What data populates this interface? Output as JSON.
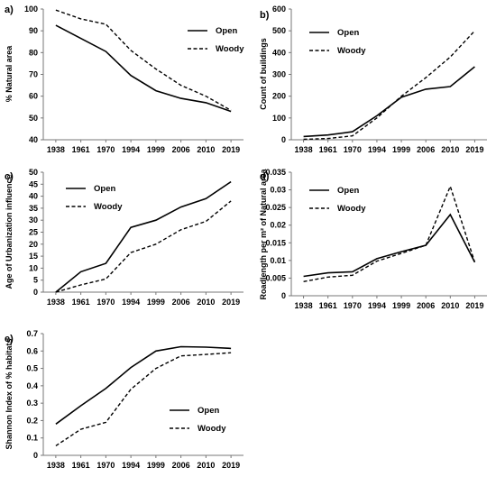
{
  "chart_data": [
    {
      "type": "line",
      "panel_label": "a)",
      "x": [
        "1938",
        "1961",
        "1970",
        "1994",
        "1999",
        "2006",
        "2010",
        "2019"
      ],
      "ylabel": "% Natural area",
      "ylim": [
        40,
        100
      ],
      "yticks": [
        "40",
        "50",
        "60",
        "70",
        "80",
        "90",
        "100"
      ],
      "legend_position": "top-right",
      "series": [
        {
          "name": "Open",
          "style": "solid",
          "values": [
            92.5,
            86.5,
            80.5,
            69.5,
            62.5,
            59,
            57,
            53
          ]
        },
        {
          "name": "Woody",
          "style": "dashed",
          "values": [
            99.5,
            95.5,
            93,
            81,
            72.5,
            65,
            60,
            53.5
          ]
        }
      ]
    },
    {
      "type": "line",
      "panel_label": "b)",
      "x": [
        "1938",
        "1961",
        "1970",
        "1994",
        "1999",
        "2006",
        "2010",
        "2019"
      ],
      "ylabel": "Count of buildings",
      "ylim": [
        0,
        600
      ],
      "yticks": [
        "0",
        "100",
        "200",
        "300",
        "400",
        "500",
        "600"
      ],
      "legend_position": "top-left",
      "series": [
        {
          "name": "Open",
          "style": "solid",
          "values": [
            15,
            22,
            37,
            110,
            195,
            232,
            244,
            335
          ]
        },
        {
          "name": "Woody",
          "style": "dashed",
          "values": [
            2,
            6,
            18,
            100,
            200,
            285,
            380,
            500
          ]
        }
      ]
    },
    {
      "type": "line",
      "panel_label": "c)",
      "x": [
        "1938",
        "1961",
        "1970",
        "1994",
        "1999",
        "2006",
        "2010",
        "2019"
      ],
      "ylabel": "Age of Urbanization influence",
      "ylim": [
        0,
        50
      ],
      "yticks": [
        "0",
        "5",
        "10",
        "15",
        "20",
        "25",
        "30",
        "35",
        "40",
        "45",
        "50"
      ],
      "legend_position": "top-left",
      "series": [
        {
          "name": "Open",
          "style": "solid",
          "values": [
            0,
            8.5,
            12,
            27,
            30,
            35.5,
            39,
            46
          ]
        },
        {
          "name": "Woody",
          "style": "dashed",
          "values": [
            0,
            3,
            5.5,
            16.5,
            20,
            26,
            29.5,
            38
          ]
        }
      ]
    },
    {
      "type": "line",
      "panel_label": "d)",
      "x": [
        "1938",
        "1961",
        "1970",
        "1994",
        "1999",
        "2006",
        "2010",
        "2019"
      ],
      "ylabel": "Roadlength per m² of Natural area",
      "ylim": [
        0,
        0.035
      ],
      "yticks": [
        "0",
        "0.005",
        "0.01",
        "0.015",
        "0.02",
        "0.025",
        "0.03",
        "0.035"
      ],
      "legend_position": "top-left",
      "series": [
        {
          "name": "Open",
          "style": "solid",
          "values": [
            0.0055,
            0.0065,
            0.0068,
            0.0105,
            0.0125,
            0.0143,
            0.023,
            0.0095
          ]
        },
        {
          "name": "Woody",
          "style": "dashed",
          "values": [
            0.004,
            0.0053,
            0.0058,
            0.0098,
            0.012,
            0.0143,
            0.031,
            0.0095
          ]
        }
      ]
    },
    {
      "type": "line",
      "panel_label": "e)",
      "x": [
        "1938",
        "1961",
        "1970",
        "1994",
        "1999",
        "2006",
        "2010",
        "2019"
      ],
      "ylabel": "Shannon Index of % habitats",
      "ylim": [
        0,
        0.7
      ],
      "yticks": [
        "0",
        "0.1",
        "0.2",
        "0.3",
        "0.4",
        "0.5",
        "0.6",
        "0.7"
      ],
      "legend_position": "center-right",
      "series": [
        {
          "name": "Open",
          "style": "solid",
          "values": [
            0.18,
            0.285,
            0.385,
            0.505,
            0.6,
            0.625,
            0.622,
            0.615
          ]
        },
        {
          "name": "Woody",
          "style": "dashed",
          "values": [
            0.055,
            0.15,
            0.19,
            0.38,
            0.5,
            0.572,
            0.58,
            0.59
          ]
        }
      ]
    }
  ]
}
